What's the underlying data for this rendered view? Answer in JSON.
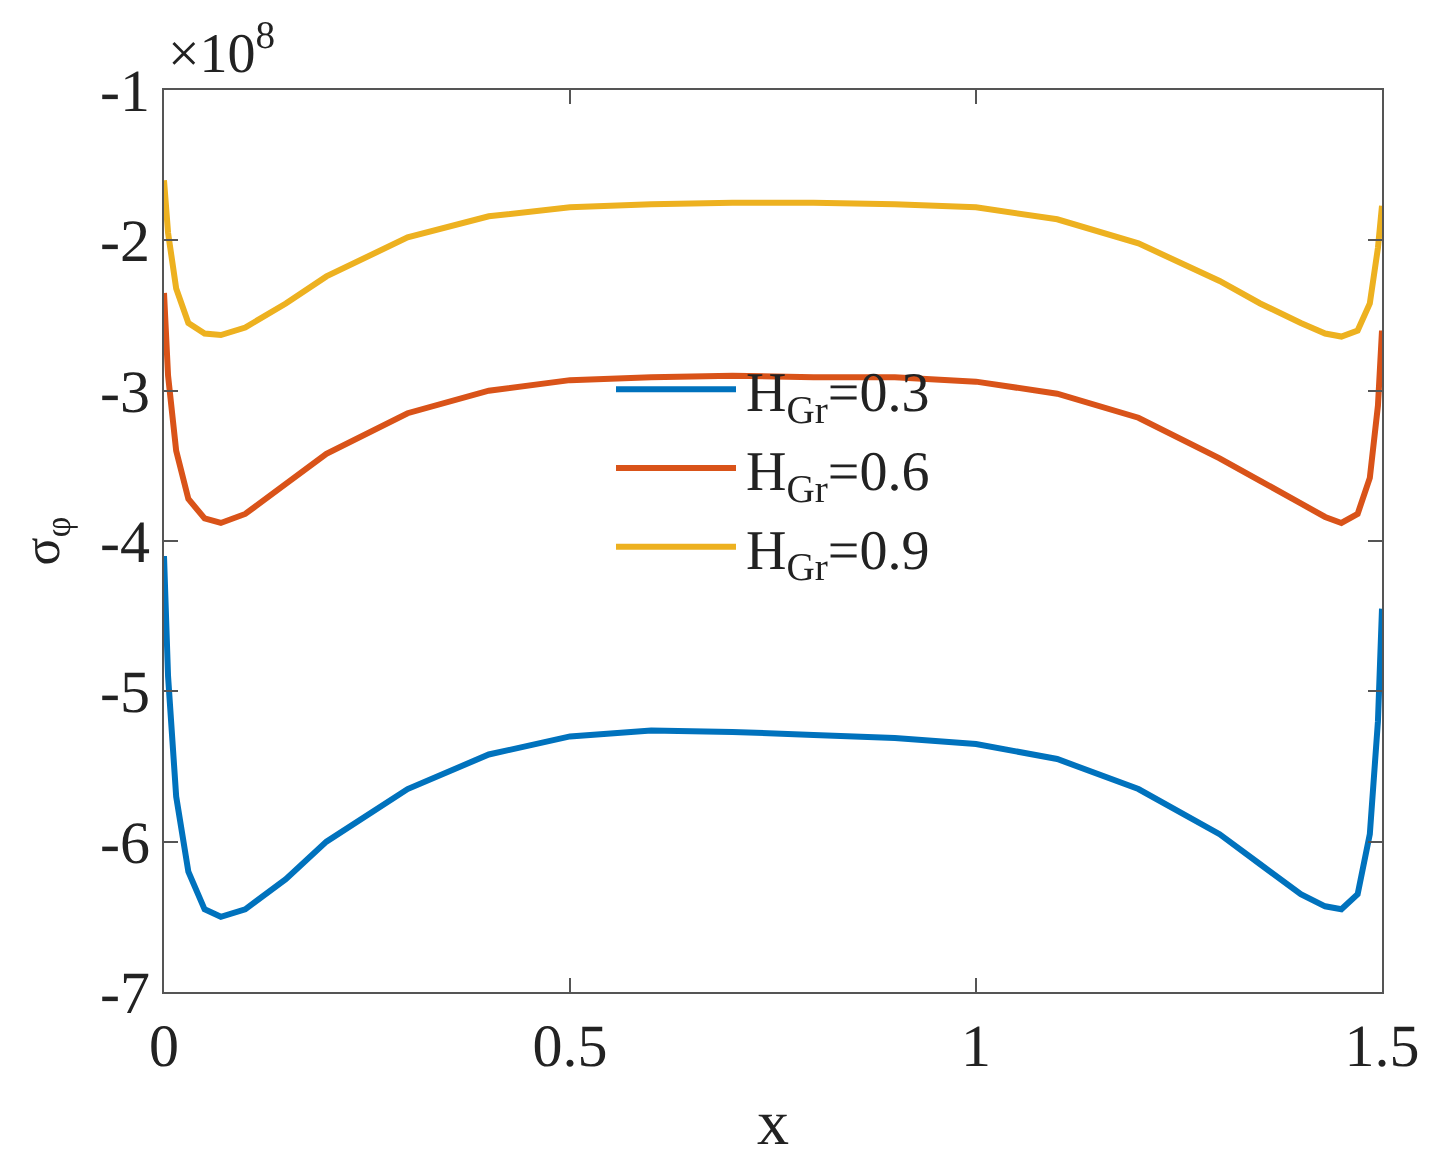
{
  "chart_data": {
    "type": "line",
    "xlabel": "x",
    "ylabel": "σ$_{φ}$",
    "annotations": [
      "×10$^{8}$"
    ],
    "x": [
      0,
      0.005,
      0.015,
      0.03,
      0.05,
      0.07,
      0.1,
      0.15,
      0.2,
      0.3,
      0.4,
      0.5,
      0.6,
      0.7,
      0.8,
      0.9,
      1.0,
      1.1,
      1.2,
      1.3,
      1.35,
      1.4,
      1.43,
      1.45,
      1.47,
      1.485,
      1.495,
      1.5
    ],
    "series": [
      {
        "name": "H$_{Gr}$=0.3",
        "color": "#0072bd",
        "values": [
          -4.1,
          -4.9,
          -5.7,
          -6.2,
          -6.45,
          -6.5,
          -6.45,
          -6.25,
          -6.0,
          -5.65,
          -5.42,
          -5.3,
          -5.26,
          -5.27,
          -5.29,
          -5.31,
          -5.35,
          -5.45,
          -5.65,
          -5.95,
          -6.15,
          -6.35,
          -6.43,
          -6.45,
          -6.35,
          -5.95,
          -5.2,
          -4.45
        ]
      },
      {
        "name": "H$_{Gr}$=0.6",
        "color": "#d95319",
        "values": [
          -2.35,
          -2.9,
          -3.4,
          -3.72,
          -3.85,
          -3.88,
          -3.82,
          -3.62,
          -3.42,
          -3.15,
          -3.0,
          -2.93,
          -2.91,
          -2.9,
          -2.91,
          -2.91,
          -2.94,
          -3.02,
          -3.18,
          -3.45,
          -3.6,
          -3.75,
          -3.84,
          -3.88,
          -3.82,
          -3.58,
          -3.1,
          -2.6
        ]
      },
      {
        "name": "H$_{Gr}$=0.9",
        "color": "#edb120",
        "values": [
          -1.6,
          -1.95,
          -2.32,
          -2.55,
          -2.62,
          -2.63,
          -2.58,
          -2.42,
          -2.24,
          -1.98,
          -1.84,
          -1.78,
          -1.76,
          -1.75,
          -1.75,
          -1.76,
          -1.78,
          -1.86,
          -2.02,
          -2.27,
          -2.42,
          -2.55,
          -2.62,
          -2.64,
          -2.6,
          -2.42,
          -2.05,
          -1.77
        ]
      }
    ],
    "xlim": [
      0,
      1.5
    ],
    "xticks": [
      0,
      0.5,
      1,
      1.5
    ],
    "ylim": [
      -7,
      -1
    ],
    "yticks": [
      -7,
      -6,
      -5,
      -4,
      -3,
      -2,
      -1
    ],
    "legend": "center",
    "marker": "none",
    "line_style": "solid"
  }
}
